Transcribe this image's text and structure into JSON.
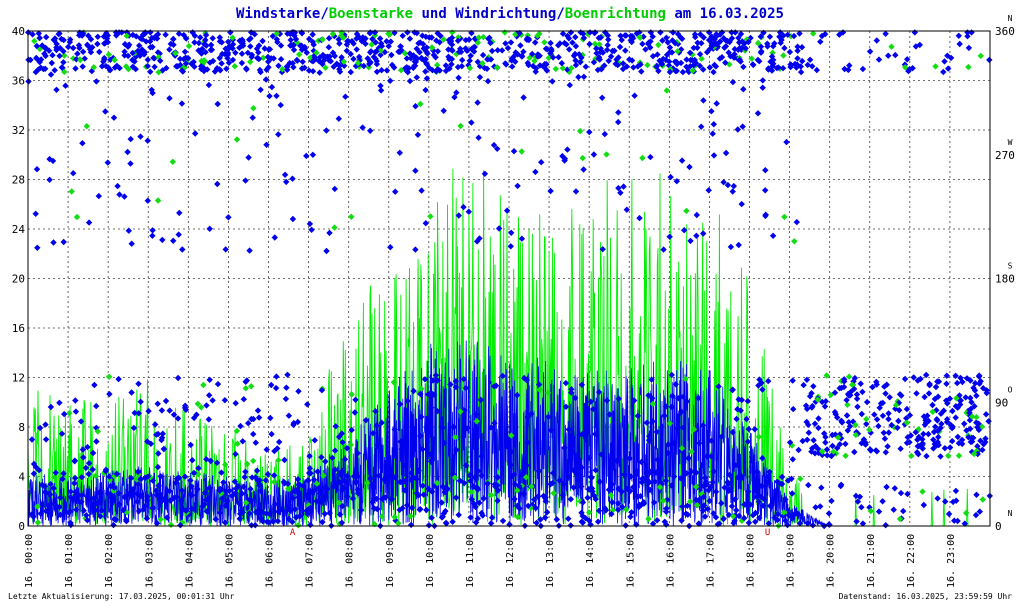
{
  "chart_data": {
    "type": "line",
    "title_parts": [
      {
        "text": "Windstarke",
        "color": "#0000cc"
      },
      {
        "text": "/",
        "color": "#0000cc"
      },
      {
        "text": "Boenstarke",
        "color": "#00cc00"
      },
      {
        "text": " und ",
        "color": "#0000cc"
      },
      {
        "text": "Windrichtung",
        "color": "#0000cc"
      },
      {
        "text": "/",
        "color": "#0000cc"
      },
      {
        "text": "Boenrichtung",
        "color": "#00cc00"
      },
      {
        "text": " am 16.03.2025",
        "color": "#0000cc"
      }
    ],
    "ylim_left": [
      0,
      40
    ],
    "yticks_left": [
      "0",
      "4",
      "8",
      "12",
      "16",
      "20",
      "24",
      "28",
      "32",
      "36",
      "40"
    ],
    "ylim_right": [
      0,
      360
    ],
    "yticks_right": [
      "0",
      "90",
      "180",
      "270",
      "360"
    ],
    "compass_labels": [
      "N",
      "O",
      "S",
      "W",
      "N"
    ],
    "xlim_hours": [
      0,
      24
    ],
    "xticks": [
      "16. 00:00",
      "16. 01:00",
      "16. 02:00",
      "16. 03:00",
      "16. 04:00",
      "16. 05:00",
      "16. 06:00",
      "16. 07:00",
      "16. 08:00",
      "16. 09:00",
      "16. 10:00",
      "16. 11:00",
      "16. 12:00",
      "16. 13:00",
      "16. 14:00",
      "16. 15:00",
      "16. 16:00",
      "16. 17:00",
      "16. 18:00",
      "16. 19:00",
      "16. 20:00",
      "16. 21:00",
      "16. 22:00",
      "16. 23:00"
    ],
    "sunrise": {
      "label": "A",
      "hour": 6.6
    },
    "sunset": {
      "label": "U",
      "hour": 18.45
    },
    "grid": true,
    "series": [
      {
        "name": "Windstarke",
        "color": "#0000ee",
        "kind": "line",
        "hourly_mean": [
          2,
          1.8,
          2.2,
          2.4,
          2,
          1.9,
          1.6,
          2,
          3,
          4,
          6,
          7,
          6.5,
          6,
          5.5,
          6,
          5.5,
          5,
          3.5,
          1.5,
          0.5,
          0,
          0,
          0
        ],
        "hourly_max": [
          4.5,
          4,
          4.5,
          5,
          4.5,
          4,
          3.5,
          4.5,
          7,
          11,
          15,
          15.5,
          14,
          14,
          12.5,
          13,
          13.5,
          13,
          8,
          2,
          0,
          0,
          0,
          0
        ]
      },
      {
        "name": "Boenstarke",
        "color": "#00ee00",
        "kind": "line",
        "hourly_max": [
          13,
          10,
          11,
          12,
          9,
          8,
          6,
          7,
          18,
          21,
          26,
          31,
          26,
          25,
          28,
          30.5,
          28,
          28,
          22,
          4,
          3,
          2.5,
          2.5,
          3
        ]
      },
      {
        "name": "Windrichtung",
        "color": "#0000ee",
        "kind": "scatter"
      },
      {
        "name": "Boenrichtung",
        "color": "#00ee00",
        "kind": "scatter"
      }
    ]
  },
  "footer": {
    "left": "Letzte Aktualisierung: 17.03.2025, 00:01:31 Uhr",
    "right": "Datenstand: 16.03.2025, 23:59:59 Uhr"
  }
}
